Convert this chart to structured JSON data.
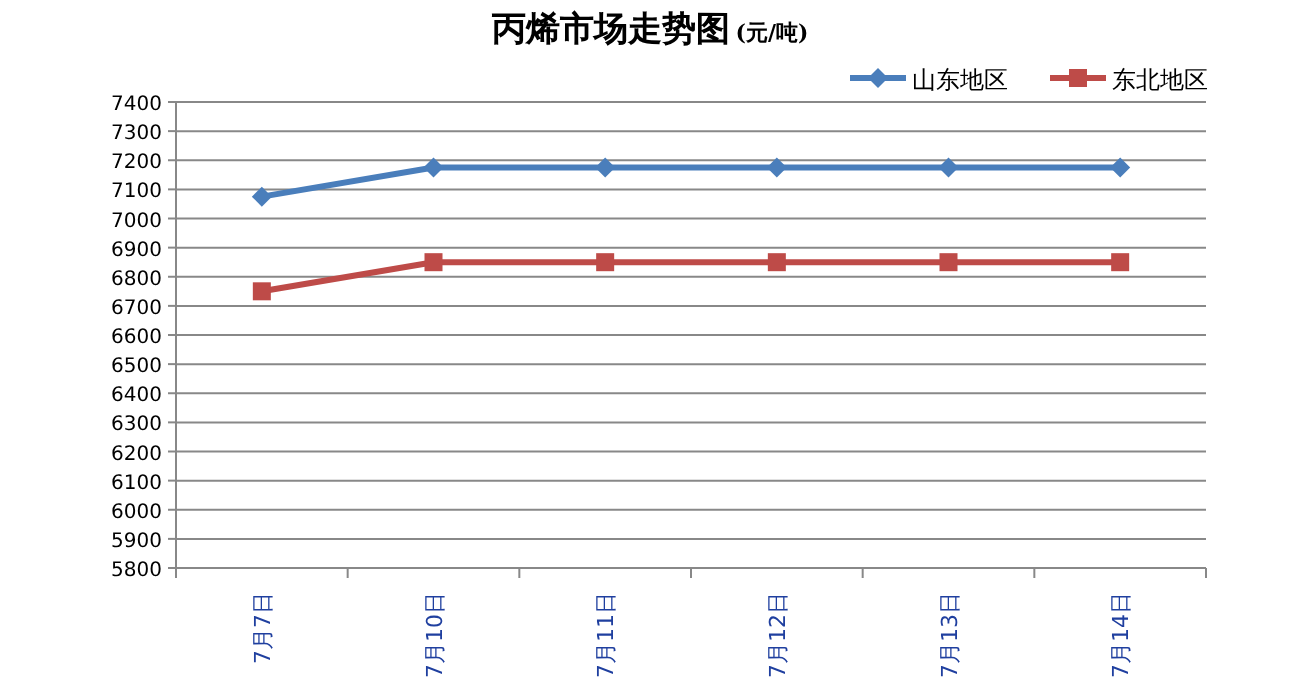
{
  "chart_data": {
    "type": "line",
    "title": "丙烯市场走势图",
    "subtitle": "(元/吨)",
    "categories": [
      "7月7日",
      "7月10日",
      "7月11日",
      "7月12日",
      "7月13日",
      "7月14日"
    ],
    "series": [
      {
        "name": "山东地区",
        "color": "#4a7ebb",
        "marker": "diamond",
        "values": [
          7075,
          7175,
          7175,
          7175,
          7175,
          7175
        ]
      },
      {
        "name": "东北地区",
        "color": "#be4b48",
        "marker": "square",
        "values": [
          6750,
          6850,
          6850,
          6850,
          6850,
          6850
        ]
      }
    ],
    "ylim": [
      5800,
      7400
    ],
    "yticks": [
      5800,
      5900,
      6000,
      6100,
      6200,
      6300,
      6400,
      6500,
      6600,
      6700,
      6800,
      6900,
      7000,
      7100,
      7200,
      7300,
      7400
    ],
    "grid": "y",
    "legend": "top right"
  }
}
